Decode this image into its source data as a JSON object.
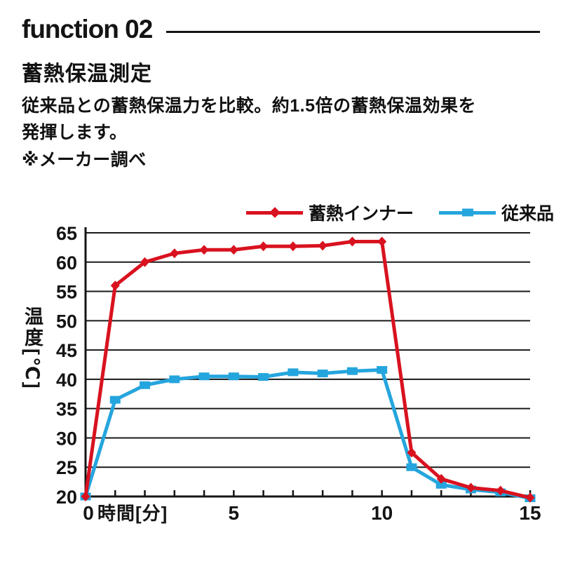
{
  "header": {
    "section_label": "function 02"
  },
  "content": {
    "title": "蓄熱保温測定",
    "description_line1": "従来品との蓄熱保温力を比較。約1.5倍の蓄熱保温効果を",
    "description_line2": "発揮します。",
    "note": "※メーカー調べ"
  },
  "chart_data": {
    "type": "line",
    "title": "",
    "xlabel": "時間[分]",
    "ylabel": "温度[℃]",
    "xlim": [
      0,
      15
    ],
    "ylim": [
      20,
      65
    ],
    "x": [
      0,
      1,
      2,
      3,
      4,
      5,
      6,
      7,
      8,
      9,
      10,
      11,
      12,
      13,
      14,
      15
    ],
    "series": [
      {
        "name": "蓄熱インナー",
        "color": "#d9121f",
        "marker": "diamond",
        "values": [
          20,
          56,
          60,
          61.5,
          62.1,
          62.1,
          62.7,
          62.7,
          62.8,
          63.5,
          63.5,
          27.5,
          23,
          21.5,
          21,
          19.8
        ]
      },
      {
        "name": "従来品",
        "color": "#25a5dd",
        "marker": "square",
        "values": [
          20,
          36.5,
          39,
          40,
          40.5,
          40.5,
          40.4,
          41.2,
          41,
          41.4,
          41.6,
          25,
          22,
          21.2,
          20.7,
          19.7
        ]
      }
    ],
    "y_ticks": [
      20,
      25,
      30,
      35,
      40,
      45,
      50,
      55,
      60,
      65
    ],
    "x_tick_interval": 1,
    "x_labeled_ticks": [
      0,
      5,
      10,
      15
    ],
    "grid": "horizontal",
    "grid_color": "#1a1a1a",
    "legend_position": "top"
  }
}
